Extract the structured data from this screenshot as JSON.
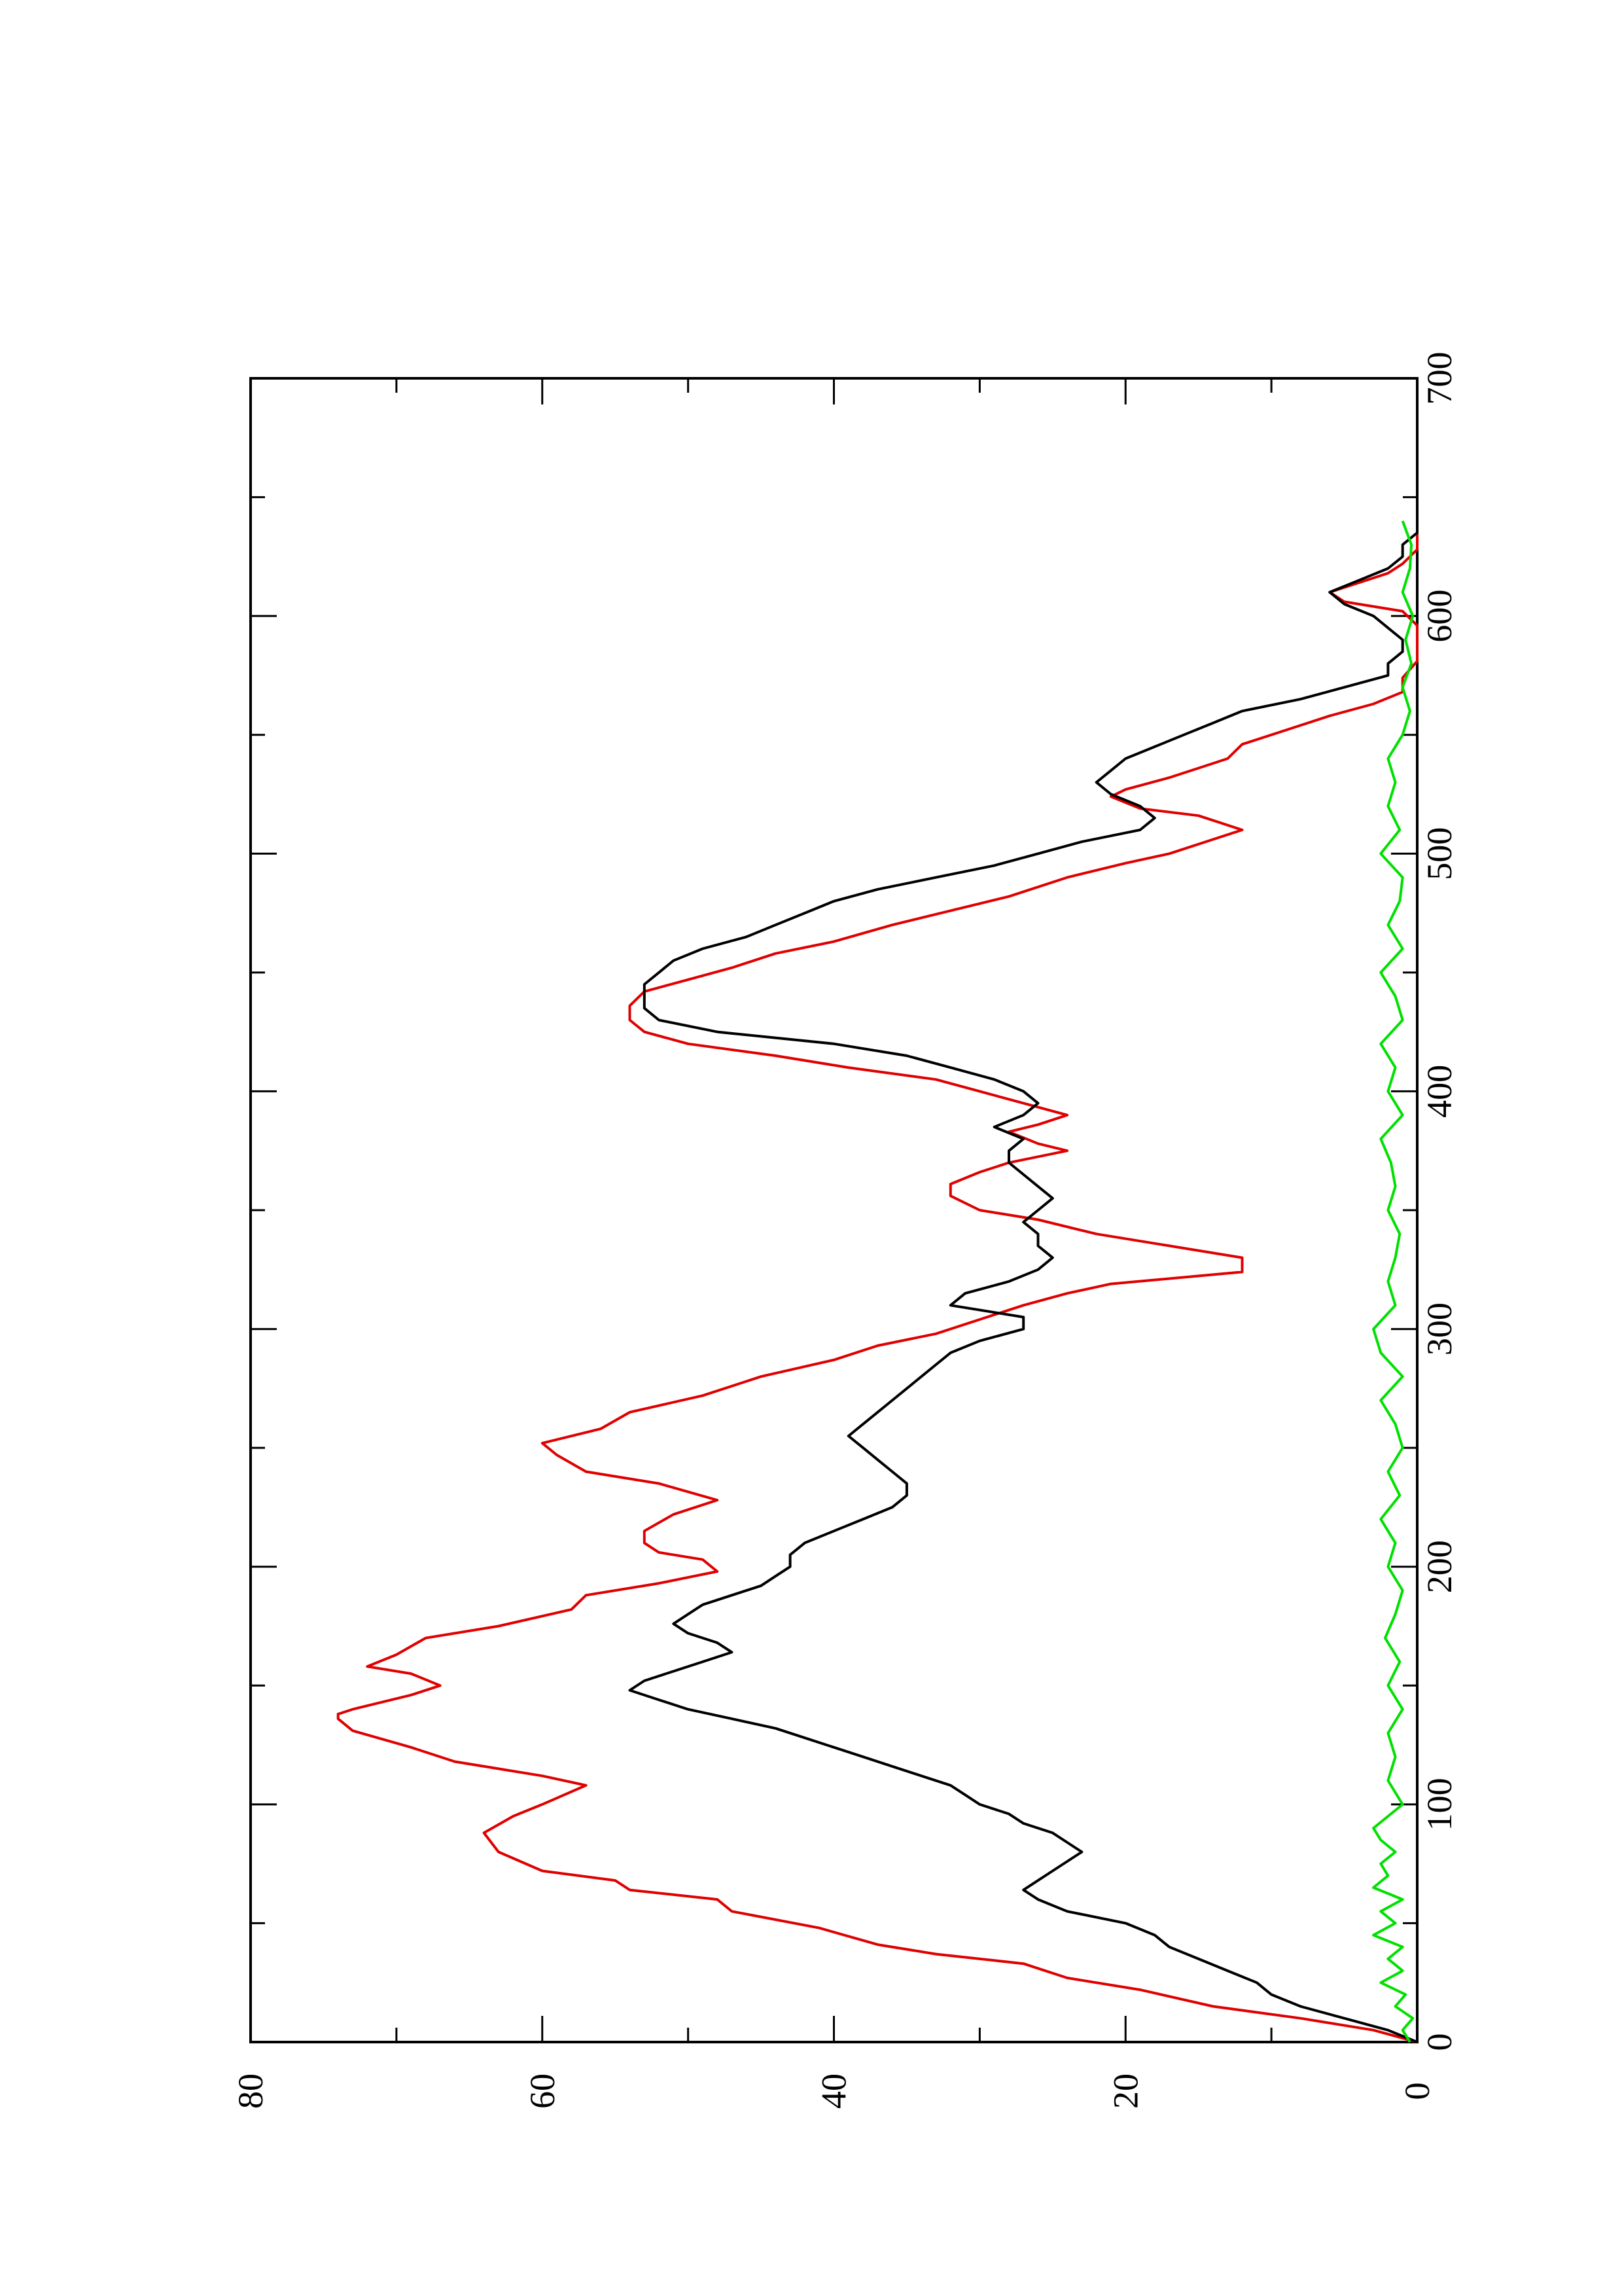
{
  "chart_data": {
    "type": "line",
    "orientation": "rotated-90-ccw",
    "title": "",
    "xlabel": "",
    "ylabel": "",
    "xlim": [
      0,
      700
    ],
    "ylim": [
      0,
      80
    ],
    "x_ticks": [
      "0",
      "100",
      "200",
      "300",
      "400",
      "500",
      "600",
      "700"
    ],
    "y_ticks": [
      "0",
      "20",
      "40",
      "60",
      "80"
    ],
    "grid": false,
    "legend": "none",
    "colors": {
      "series_1": "#e00000",
      "series_2": "#000000",
      "series_3": "#00e000",
      "axes": "#000000"
    },
    "series": [
      {
        "color": "#e00000",
        "x": [
          0,
          5,
          10,
          15,
          22,
          27,
          33,
          37,
          41,
          48,
          55,
          60,
          64,
          68,
          72,
          80,
          88,
          95,
          100,
          108,
          112,
          118,
          124,
          131,
          136,
          138,
          140,
          146,
          150,
          155,
          158,
          163,
          170,
          175,
          182,
          188,
          193,
          198,
          203,
          206,
          210,
          215,
          222,
          228,
          235,
          240,
          247,
          252,
          258,
          265,
          272,
          280,
          287,
          293,
          298,
          304,
          310,
          315,
          319,
          324,
          330,
          336,
          340,
          346,
          350,
          356,
          361,
          366,
          370,
          375,
          378,
          383,
          386,
          390,
          395,
          400,
          405,
          410,
          415,
          420,
          425,
          430,
          436,
          442,
          447,
          452,
          458,
          463,
          470,
          476,
          482,
          490,
          496,
          500,
          506,
          510,
          516,
          519,
          524,
          527,
          532,
          536,
          540,
          546,
          552,
          558,
          563,
          568,
          574,
          581,
          588,
          592,
          596,
          602,
          606,
          610,
          614,
          618,
          622,
          628,
          634,
          638
        ],
        "y": [
          0,
          3,
          8,
          14,
          19,
          24,
          27,
          33,
          37,
          41,
          47,
          48,
          54,
          55,
          60,
          63,
          64,
          62,
          60,
          57,
          60,
          66,
          69,
          73,
          74,
          74,
          73,
          69,
          67,
          69,
          72,
          70,
          68,
          63,
          58,
          57,
          52,
          48,
          49,
          52,
          53,
          53,
          51,
          48,
          52,
          57,
          59,
          60,
          56,
          54,
          49,
          45,
          40,
          37,
          33,
          30,
          27,
          24,
          21,
          12,
          12,
          18,
          22,
          26,
          30,
          32,
          32,
          30,
          28,
          24,
          26,
          28,
          26,
          24,
          27,
          30,
          33,
          39,
          44,
          50,
          53,
          54,
          54,
          53,
          50,
          47,
          44,
          40,
          36,
          32,
          28,
          24,
          20,
          17,
          14,
          12,
          15,
          19,
          21,
          20,
          17,
          15,
          13,
          12,
          9,
          6,
          3,
          1,
          1,
          0,
          0,
          0,
          0,
          1,
          5,
          6,
          4,
          2,
          1,
          0,
          0,
          0
        ]
      },
      {
        "color": "#000000",
        "x": [
          0,
          5,
          10,
          15,
          20,
          25,
          30,
          35,
          40,
          45,
          50,
          55,
          60,
          64,
          68,
          72,
          76,
          80,
          84,
          88,
          92,
          96,
          100,
          104,
          108,
          112,
          116,
          120,
          124,
          128,
          132,
          136,
          140,
          144,
          148,
          152,
          156,
          160,
          164,
          168,
          172,
          176,
          180,
          184,
          188,
          192,
          196,
          200,
          205,
          210,
          215,
          220,
          225,
          230,
          235,
          240,
          245,
          250,
          255,
          260,
          265,
          270,
          275,
          280,
          285,
          290,
          295,
          300,
          305,
          310,
          315,
          320,
          325,
          330,
          335,
          340,
          345,
          350,
          355,
          360,
          365,
          370,
          375,
          380,
          385,
          390,
          395,
          400,
          405,
          410,
          415,
          420,
          425,
          430,
          435,
          440,
          445,
          450,
          455,
          460,
          465,
          470,
          475,
          480,
          485,
          490,
          495,
          500,
          505,
          510,
          515,
          520,
          525,
          530,
          535,
          540,
          545,
          550,
          555,
          560,
          565,
          570,
          575,
          580,
          585,
          590,
          595,
          600,
          605,
          610,
          615,
          620,
          625,
          630,
          635,
          640
        ],
        "y": [
          0,
          2,
          5,
          8,
          10,
          11,
          13,
          15,
          17,
          18,
          20,
          24,
          26,
          27,
          26,
          25,
          24,
          23,
          24,
          25,
          27,
          28,
          30,
          31,
          32,
          34,
          36,
          38,
          40,
          42,
          44,
          47,
          50,
          52,
          54,
          53,
          51,
          49,
          47,
          48,
          50,
          51,
          50,
          49,
          47,
          45,
          44,
          43,
          43,
          42,
          40,
          38,
          36,
          35,
          35,
          36,
          37,
          38,
          39,
          38,
          37,
          36,
          35,
          34,
          33,
          32,
          30,
          27,
          27,
          32,
          31,
          28,
          26,
          25,
          26,
          26,
          27,
          26,
          25,
          26,
          27,
          28,
          28,
          27,
          29,
          27,
          26,
          27,
          29,
          32,
          35,
          40,
          48,
          52,
          53,
          53,
          53,
          52,
          51,
          49,
          46,
          44,
          42,
          40,
          37,
          33,
          29,
          26,
          23,
          19,
          18,
          19,
          21,
          22,
          21,
          20,
          18,
          16,
          14,
          12,
          8,
          5,
          2,
          2,
          1,
          1,
          2,
          3,
          5,
          6,
          4,
          2,
          1,
          1,
          0,
          0
        ]
      },
      {
        "color": "#00e000",
        "x": [
          0,
          5,
          10,
          15,
          20,
          25,
          30,
          35,
          40,
          45,
          50,
          55,
          60,
          65,
          70,
          75,
          80,
          85,
          90,
          95,
          100,
          110,
          120,
          130,
          140,
          150,
          160,
          170,
          180,
          190,
          200,
          210,
          220,
          230,
          240,
          250,
          260,
          270,
          280,
          290,
          300,
          310,
          320,
          330,
          340,
          350,
          360,
          370,
          380,
          390,
          400,
          410,
          420,
          430,
          440,
          450,
          460,
          470,
          480,
          490,
          500,
          510,
          520,
          530,
          540,
          550,
          560,
          570,
          580,
          590,
          600,
          610,
          620,
          630,
          640
        ],
        "y": [
          0.5,
          1,
          0.3,
          1.5,
          0.8,
          2.5,
          1,
          2,
          1,
          3,
          1.5,
          2.5,
          1,
          3,
          2,
          2.5,
          1.5,
          2.5,
          3,
          2,
          1,
          2,
          1.5,
          2,
          1,
          2,
          1.2,
          2.2,
          1.5,
          1,
          2,
          1.5,
          2.5,
          1.2,
          2,
          1,
          1.5,
          2.5,
          1,
          2.5,
          3,
          1.5,
          2,
          1.5,
          1.2,
          2,
          1.5,
          1.8,
          2.5,
          1,
          2,
          1.5,
          2.5,
          1,
          1.5,
          2.5,
          1,
          2,
          1.2,
          1,
          2.5,
          1.2,
          2,
          1.5,
          2,
          1,
          0.5,
          1,
          0.4,
          0.8,
          0.3,
          1,
          0.5,
          0.4,
          1
        ]
      }
    ]
  }
}
